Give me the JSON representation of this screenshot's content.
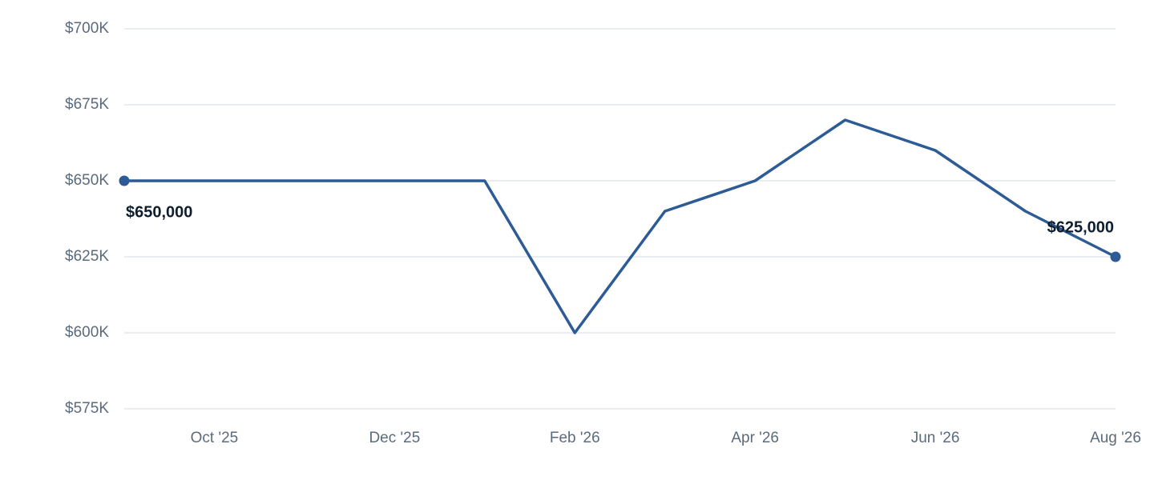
{
  "chart_data": {
    "type": "line",
    "categories": [
      null,
      "Oct '25",
      null,
      "Dec '25",
      null,
      "Feb '26",
      null,
      "Apr '26",
      null,
      "Jun '26",
      null,
      "Aug '26"
    ],
    "series": [
      {
        "color": "#2c5b96",
        "values": [
          650000,
          650000,
          650000,
          650000,
          650000,
          600000,
          640000,
          650000,
          670000,
          660000,
          640000,
          625000
        ],
        "value_labels": [
          "$650,000",
          null,
          null,
          null,
          null,
          null,
          null,
          null,
          null,
          null,
          null,
          "$625,000"
        ]
      }
    ],
    "ylim": [
      575000,
      700000
    ],
    "yticks": [
      {
        "value": 575000,
        "label": "$575K"
      },
      {
        "value": 600000,
        "label": "$600K"
      },
      {
        "value": 625000,
        "label": "$625K"
      },
      {
        "value": 650000,
        "label": "$650K"
      },
      {
        "value": 675000,
        "label": "$675K"
      },
      {
        "value": 700000,
        "label": "$700K"
      }
    ],
    "grid": true
  }
}
